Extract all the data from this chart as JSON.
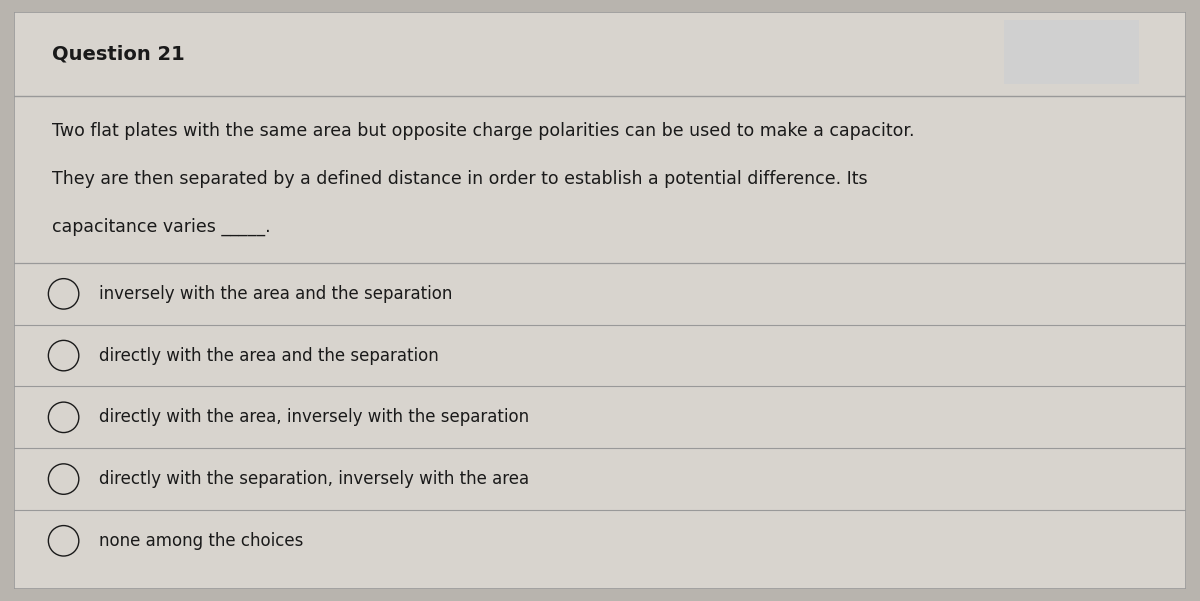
{
  "title": "Question 21",
  "question_lines": [
    "Two flat plates with the same area but opposite charge polarities can be used to make a capacitor.",
    "They are then separated by a defined distance in order to establish a potential difference. Its",
    "capacitance varies _____."
  ],
  "choices": [
    "inversely with the area and the separation",
    "directly with the area and the separation",
    "directly with the area, inversely with the separation",
    "directly with the separation, inversely with the area",
    "none among the choices"
  ],
  "bg_color": "#b8b4ae",
  "card_color": "#d8d4ce",
  "border_color": "#999999",
  "title_fontsize": 14,
  "body_fontsize": 12.5,
  "choice_fontsize": 12,
  "text_color": "#1a1a1a",
  "fig_width": 12.0,
  "fig_height": 6.01
}
